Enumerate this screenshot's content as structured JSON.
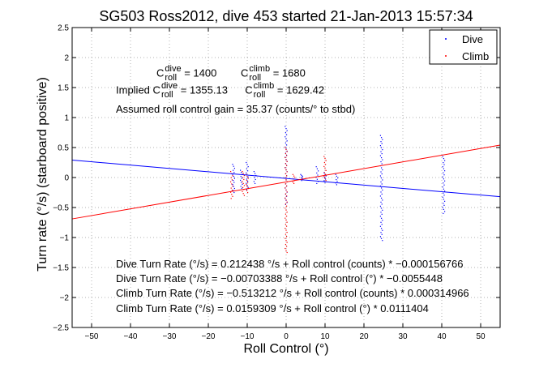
{
  "chart_data": {
    "type": "scatter",
    "title": "SG503 Ross2012, dive 453 started 21-Jan-2013 15:57:34",
    "xlabel": "Roll Control (°)",
    "ylabel": "Turn rate (°/s) (starboard positive)",
    "xlim": [
      -55,
      55
    ],
    "ylim": [
      -2.5,
      2.5
    ],
    "xticks": [
      -50,
      -40,
      -30,
      -20,
      -10,
      0,
      10,
      20,
      30,
      40,
      50
    ],
    "yticks": [
      -2.5,
      -2,
      -1.5,
      -1,
      -0.5,
      0,
      0.5,
      1,
      1.5,
      2,
      2.5
    ],
    "xtick_labels": [
      "−50",
      "−40",
      "−30",
      "−20",
      "−10",
      "0",
      "10",
      "20",
      "30",
      "40",
      "50"
    ],
    "ytick_labels": [
      "−2.5",
      "−2",
      "−1.5",
      "−1",
      "−0.5",
      "0",
      "0.5",
      "1",
      "1.5",
      "2",
      "2.5"
    ],
    "grid": true,
    "legend": {
      "position": "top-right",
      "entries": [
        "Dive",
        "Climb"
      ]
    },
    "colors": {
      "dive": "#0000ff",
      "climb": "#ff0000"
    },
    "series": [
      {
        "name": "Dive",
        "color": "#0000ff",
        "clusters": [
          {
            "x": -13.5,
            "ymin": -0.25,
            "ymax": 0.22
          },
          {
            "x": -11.5,
            "ymin": -0.18,
            "ymax": 0.12
          },
          {
            "x": -10,
            "ymin": -0.2,
            "ymax": 0.25
          },
          {
            "x": -8,
            "ymin": -0.1,
            "ymax": 0.1
          },
          {
            "x": 0,
            "ymin": -0.45,
            "ymax": 0.85
          },
          {
            "x": 4,
            "ymin": -0.05,
            "ymax": 0.05
          },
          {
            "x": 8,
            "ymin": -0.1,
            "ymax": 0.18
          },
          {
            "x": 10,
            "ymin": -0.08,
            "ymax": 0.08
          },
          {
            "x": 13,
            "ymin": -0.12,
            "ymax": 0.05
          },
          {
            "x": 24.5,
            "ymin": -1.05,
            "ymax": 0.7
          },
          {
            "x": 40.5,
            "ymin": -0.6,
            "ymax": 0.35
          }
        ],
        "fit_line": [
          [
            -55,
            0.29
          ],
          [
            55,
            -0.32
          ]
        ]
      },
      {
        "name": "Climb",
        "color": "#ff0000",
        "clusters": [
          {
            "x": -14,
            "ymin": -0.35,
            "ymax": 0.1
          },
          {
            "x": -11,
            "ymin": -0.3,
            "ymax": 0.1
          },
          {
            "x": -10,
            "ymin": -0.25,
            "ymax": 0.05
          },
          {
            "x": 0,
            "ymin": -1.25,
            "ymax": 0.5
          },
          {
            "x": 2,
            "ymin": -0.1,
            "ymax": 0.05
          },
          {
            "x": 10,
            "ymin": -0.05,
            "ymax": 0.35
          }
        ],
        "fit_line": [
          [
            -55,
            -0.69
          ],
          [
            55,
            0.54
          ]
        ]
      }
    ]
  },
  "annotations": {
    "c_dive_sym": "C",
    "c_dive_sup": "dive",
    "c_dive_sub": "roll",
    "c_dive_val": "= 1400",
    "c_climb_sym": "C",
    "c_climb_sup": "climb",
    "c_climb_sub": "roll",
    "c_climb_val": "= 1680",
    "implied_prefix": "Implied",
    "implied_dive_sym": "C",
    "implied_dive_sup": "dive",
    "implied_dive_sub": "roll",
    "implied_dive_val": "= 1355.13",
    "implied_climb_sym": "C",
    "implied_climb_sup": "climb",
    "implied_climb_sub": "roll",
    "implied_climb_val": "= 1629.42",
    "gain": "Assumed roll control gain = 35.37 (counts/° to stbd)",
    "fit1": "Dive Turn Rate (°/s) = 0.212438 °/s + Roll control (counts) * −0.000156766",
    "fit2": "Dive Turn Rate (°/s) = −0.00703388 °/s + Roll control (°) * −0.0055448",
    "fit3": "Climb Turn Rate (°/s) = −0.513212 °/s + Roll control (counts) * 0.000314966",
    "fit4": "Climb Turn Rate (°/s) = 0.0159309 °/s + Roll control (°) * 0.0111404"
  }
}
